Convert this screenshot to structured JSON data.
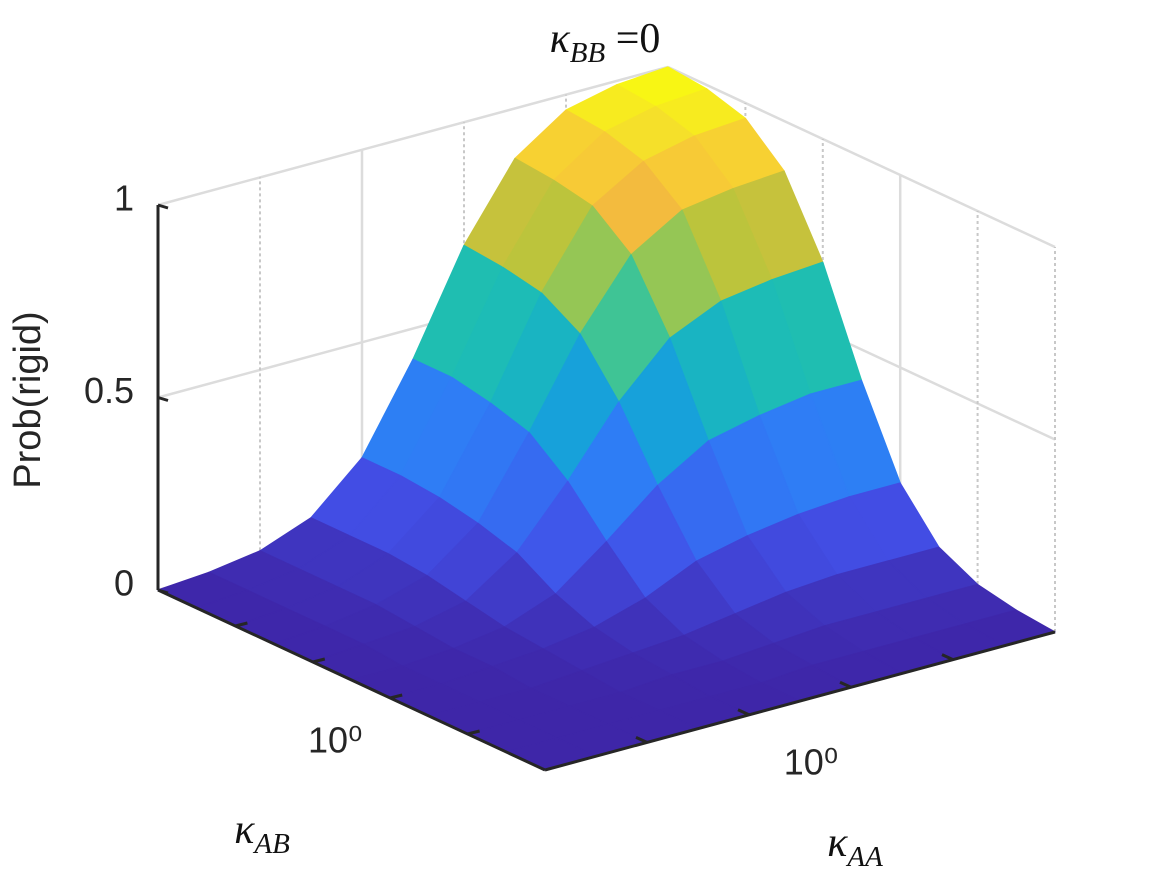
{
  "chart_data": {
    "type": "surface",
    "title": {
      "symbol": "κ",
      "subscript": "BB",
      "text": " =0"
    },
    "xlabel": {
      "symbol": "κ",
      "subscript": "AA"
    },
    "ylabel": {
      "symbol": "κ",
      "subscript": "AB"
    },
    "zlabel": "Prob(rigid)",
    "x": [
      0.01,
      0.0316,
      0.1,
      0.316,
      1,
      3.16,
      10,
      31.6,
      100,
      316,
      1000
    ],
    "y": [
      0.001,
      0.00316,
      0.01,
      0.0316,
      0.1,
      0.316,
      1,
      3.16,
      10,
      31.6,
      100
    ],
    "z": [
      [
        0,
        0.01,
        0.03,
        0.08,
        0.2,
        0.42,
        0.68,
        0.87,
        0.96,
        0.99,
        1
      ],
      [
        0,
        0.01,
        0.03,
        0.08,
        0.2,
        0.42,
        0.67,
        0.86,
        0.95,
        0.98,
        0.99
      ],
      [
        0,
        0.01,
        0.03,
        0.08,
        0.19,
        0.4,
        0.65,
        0.84,
        0.92,
        0.95,
        0.96
      ],
      [
        0,
        0.01,
        0.03,
        0.07,
        0.17,
        0.37,
        0.59,
        0.76,
        0.84,
        0.86,
        0.87
      ],
      [
        0,
        0.01,
        0.02,
        0.05,
        0.14,
        0.29,
        0.46,
        0.59,
        0.65,
        0.67,
        0.68
      ],
      [
        0,
        0,
        0.01,
        0.03,
        0.08,
        0.18,
        0.29,
        0.37,
        0.4,
        0.42,
        0.42
      ],
      [
        0,
        0,
        0.01,
        0.02,
        0.04,
        0.08,
        0.14,
        0.17,
        0.19,
        0.2,
        0.2
      ],
      [
        0,
        0,
        0,
        0.01,
        0.02,
        0.03,
        0.05,
        0.07,
        0.08,
        0.08,
        0.08
      ],
      [
        0,
        0,
        0,
        0,
        0.01,
        0.01,
        0.02,
        0.03,
        0.03,
        0.03,
        0.03
      ],
      [
        0,
        0,
        0,
        0,
        0,
        0,
        0.01,
        0.01,
        0.01,
        0.01,
        0.01
      ],
      [
        0,
        0,
        0,
        0,
        0,
        0,
        0,
        0,
        0,
        0,
        0
      ]
    ],
    "xlim": [
      0.01,
      1000
    ],
    "ylim": [
      0.001,
      100
    ],
    "zlim": [
      0,
      1
    ],
    "xticks": [
      {
        "value": 1,
        "label": "10⁰"
      }
    ],
    "xminorticks": [
      0.1,
      10,
      100
    ],
    "yticks": [
      {
        "value": 1,
        "label": "10⁰"
      }
    ],
    "yminorticks": [
      0.01,
      0.1,
      10
    ],
    "zticks": [
      0,
      0.5,
      1
    ],
    "xscale": "log",
    "yscale": "log",
    "grid": true,
    "colormap": "parula"
  }
}
